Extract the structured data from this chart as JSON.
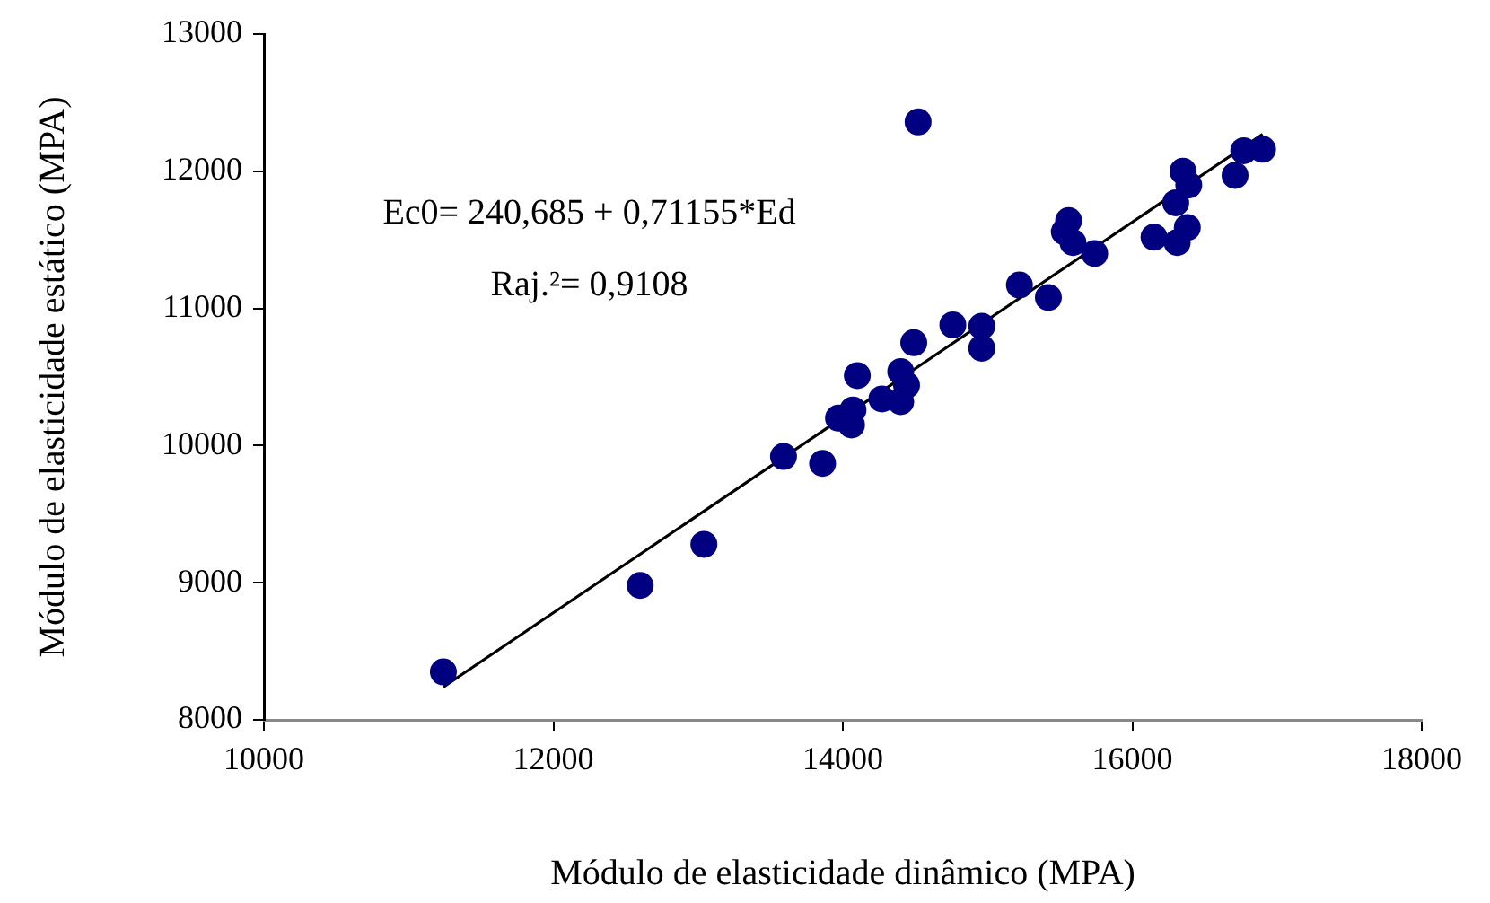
{
  "chart_data": {
    "type": "scatter",
    "xlabel": "Módulo de elasticidade dinâmico (MPA)",
    "ylabel": "Módulo de elasticidade estático (MPA)",
    "xlim": [
      10000,
      18000
    ],
    "xticks": [
      10000,
      12000,
      14000,
      16000,
      18000
    ],
    "ylim": [
      8000,
      13000
    ],
    "yticks": [
      8000,
      9000,
      10000,
      11000,
      12000,
      13000
    ],
    "grid": false,
    "legend": false,
    "marker": "circle",
    "annotations": [
      "Ec0= 240,685 + 0,71155*Ed",
      "Raj.²= 0,9108"
    ],
    "series": [
      {
        "color": "#000080",
        "x": [
          11240,
          12600,
          13040,
          13590,
          13860,
          13970,
          14070,
          14060,
          14100,
          14270,
          14400,
          14440,
          14400,
          14490,
          14760,
          14960,
          14960,
          15220,
          15420,
          15560,
          15530,
          15590,
          15740,
          16150,
          16310,
          16380,
          16350,
          16390,
          16300,
          16710,
          16770,
          16900,
          14520
        ],
        "values": [
          8350,
          8980,
          9280,
          9920,
          9870,
          10200,
          10260,
          10150,
          10510,
          10340,
          10320,
          10440,
          10540,
          10750,
          10880,
          10870,
          10710,
          11170,
          11080,
          11640,
          11560,
          11480,
          11400,
          11520,
          11480,
          11590,
          12000,
          11900,
          11770,
          11970,
          12150,
          12160,
          12360
        ]
      },
      {
        "type": "line",
        "color": "#000000",
        "marker": "none",
        "x": [
          11240,
          16900
        ],
        "values": [
          8240,
          12270
        ]
      }
    ]
  }
}
